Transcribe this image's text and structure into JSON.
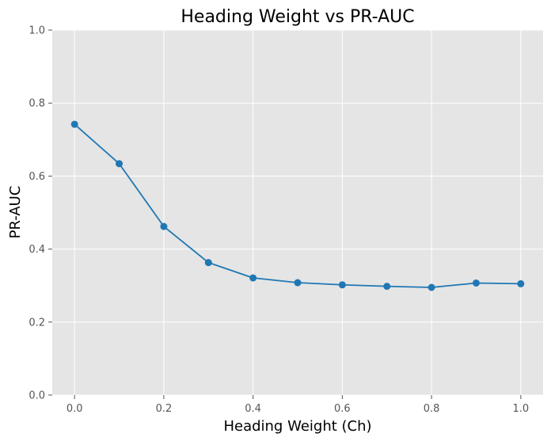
{
  "chart_data": {
    "type": "line",
    "title": "Heading Weight vs PR-AUC",
    "xlabel": "Heading Weight (Ch)",
    "ylabel": "PR-AUC",
    "xlim": [
      -0.05,
      1.05
    ],
    "ylim": [
      0.0,
      1.0
    ],
    "xticks": [
      "0.0",
      "0.2",
      "0.4",
      "0.6",
      "0.8",
      "1.0"
    ],
    "yticks": [
      "0.0",
      "0.2",
      "0.4",
      "0.6",
      "0.8",
      "1.0"
    ],
    "grid": true,
    "series": [
      {
        "x": [
          0.0,
          0.1,
          0.2,
          0.3,
          0.4,
          0.5,
          0.6,
          0.7,
          0.8,
          0.9,
          1.0
        ],
        "y": [
          0.742,
          0.634,
          0.462,
          0.363,
          0.321,
          0.308,
          0.302,
          0.298,
          0.295,
          0.307,
          0.305
        ],
        "color": "#1f77b4",
        "marker": "circle"
      }
    ],
    "colors": {
      "plot_background": "#e5e5e5",
      "grid": "#ffffff",
      "line": "#1f77b4"
    }
  }
}
